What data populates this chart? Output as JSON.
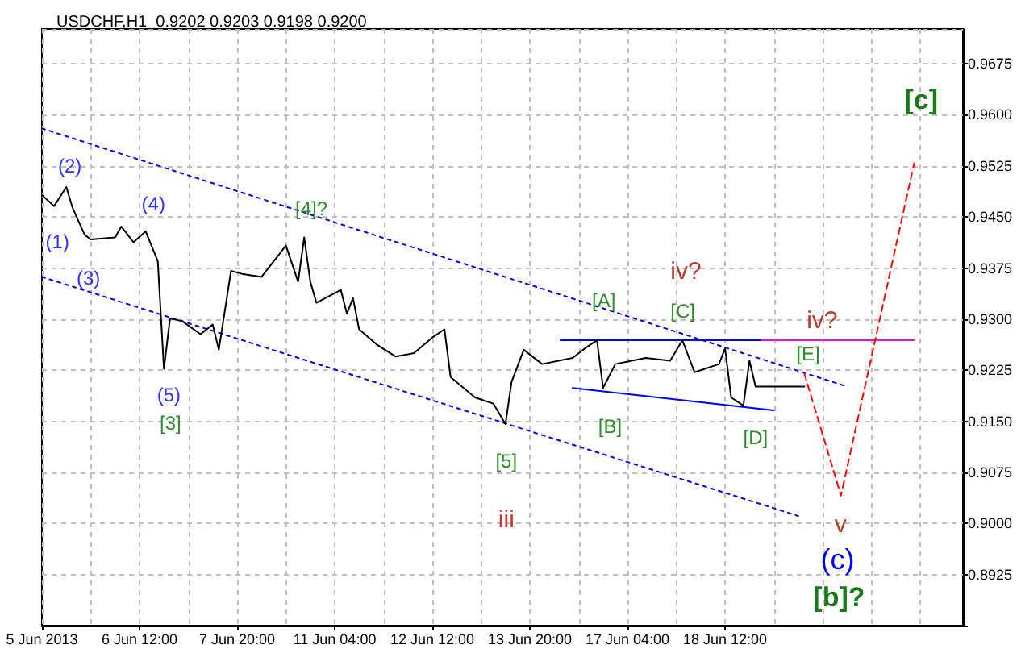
{
  "chart_data": {
    "type": "line",
    "title": "USDCHF,H1  0.9202 0.9203 0.9198 0.9200",
    "categories": [
      "5 Jun 2013",
      null,
      null,
      null,
      null,
      null,
      null,
      null,
      null,
      null,
      null,
      null,
      null,
      null,
      null,
      null,
      "6 Jun 12:00",
      null,
      null,
      null,
      null,
      null,
      null,
      null,
      null,
      null,
      null,
      null,
      null,
      null,
      null,
      null,
      "7 Jun 20:00",
      null,
      null,
      null,
      null,
      null,
      null,
      null,
      null,
      null,
      null,
      null,
      null,
      null,
      null,
      null,
      "11 Jun 04:00",
      null,
      null,
      null,
      null,
      null,
      null,
      null,
      null,
      null,
      null,
      null,
      null,
      null,
      null,
      null,
      "12 Jun 12:00",
      null,
      null,
      null,
      null,
      null,
      null,
      null,
      null,
      null,
      null,
      null,
      null,
      null,
      null,
      null,
      "13 Jun 20:00",
      null,
      null,
      null,
      null,
      null,
      null,
      null,
      null,
      null,
      null,
      null,
      null,
      null,
      null,
      null,
      "17 Jun 04:00",
      null,
      null,
      null,
      null,
      null,
      null,
      null,
      null,
      null,
      null,
      null,
      null,
      null,
      null,
      null,
      "18 Jun 12:00",
      null,
      null,
      null,
      null,
      null,
      null,
      null,
      null,
      null,
      null,
      null,
      null,
      null,
      null,
      null,
      null,
      null,
      null,
      null,
      null,
      null,
      null,
      null,
      null,
      null,
      null,
      null,
      null,
      null,
      null,
      null,
      null,
      null,
      null,
      null,
      null,
      null,
      null,
      null
    ],
    "ylim": [
      0.885,
      0.9726
    ],
    "yticks": [
      {
        "value": 0.885,
        "label": null
      },
      {
        "value": 0.8925,
        "label": "0.8925"
      },
      {
        "value": 0.9,
        "label": "0.9000"
      },
      {
        "value": 0.9075,
        "label": "0.9075"
      },
      {
        "value": 0.915,
        "label": "0.9150"
      },
      {
        "value": 0.9225,
        "label": "0.9225"
      },
      {
        "value": 0.93,
        "label": "0.9300"
      },
      {
        "value": 0.9375,
        "label": "0.9375"
      },
      {
        "value": 0.945,
        "label": "0.9450"
      },
      {
        "value": 0.9525,
        "label": "0.9525"
      },
      {
        "value": 0.96,
        "label": "0.9600"
      },
      {
        "value": 0.9675,
        "label": "0.9675"
      }
    ],
    "grid": true,
    "marker": "none",
    "series": [
      {
        "color": "#000000",
        "values": [
          0.9482,
          null,
          0.9466,
          null,
          0.9494,
          0.9464,
          null,
          0.9424,
          0.9417,
          null,
          null,
          null,
          0.942,
          0.9436,
          null,
          0.9413,
          null,
          0.9429,
          null,
          0.9385,
          0.9227,
          0.9301,
          null,
          0.9297,
          null,
          null,
          0.9278,
          null,
          0.9292,
          0.9255,
          null,
          0.9371,
          null,
          0.9366,
          null,
          null,
          0.9362,
          null,
          0.9385,
          null,
          0.9408,
          null,
          0.9355,
          0.942,
          0.9355,
          0.9324,
          null,
          null,
          null,
          0.9343,
          0.9308,
          0.9331,
          0.9285,
          null,
          null,
          0.9262,
          null,
          null,
          0.9245,
          null,
          null,
          0.925,
          null,
          null,
          0.9273,
          null,
          0.9285,
          0.9215,
          null,
          null,
          null,
          0.9185,
          null,
          null,
          0.9176,
          null,
          0.9146,
          0.9208,
          null,
          0.9255,
          null,
          null,
          0.9234,
          null,
          null,
          null,
          null,
          0.9243,
          null,
          0.9257,
          null,
          0.9269,
          0.9199,
          null,
          0.9234,
          null,
          null,
          null,
          null,
          0.9243,
          null,
          null,
          null,
          0.9239,
          null,
          0.9269,
          null,
          0.9222,
          null,
          null,
          null,
          0.9234,
          0.9257,
          0.9185,
          null,
          0.9173,
          0.9239,
          0.9201,
          null,
          null,
          null,
          0.9201,
          null,
          null,
          null,
          0.9201,
          null,
          null,
          null,
          null,
          null,
          null,
          null,
          null,
          null,
          null,
          null,
          null,
          null,
          null,
          null,
          null,
          null,
          null,
          null,
          null,
          null,
          null,
          null,
          null,
          null,
          null
        ]
      },
      {
        "color": "#0000ff",
        "line_style": "dotted",
        "values": [
          0.958,
          null,
          null,
          null,
          null,
          null,
          null,
          null,
          null,
          null,
          null,
          null,
          null,
          null,
          null,
          null,
          null,
          null,
          null,
          null,
          null,
          null,
          null,
          null,
          null,
          null,
          null,
          null,
          null,
          null,
          null,
          null,
          null,
          null,
          null,
          null,
          null,
          null,
          null,
          null,
          null,
          null,
          null,
          null,
          null,
          null,
          null,
          null,
          null,
          null,
          null,
          null,
          null,
          null,
          null,
          null,
          null,
          null,
          null,
          null,
          null,
          null,
          null,
          null,
          null,
          null,
          null,
          null,
          null,
          null,
          null,
          null,
          null,
          null,
          null,
          null,
          null,
          null,
          null,
          null,
          null,
          null,
          null,
          null,
          null,
          null,
          null,
          null,
          null,
          null,
          null,
          null,
          null,
          null,
          null,
          null,
          null,
          null,
          null,
          null,
          null,
          null,
          null,
          null,
          null,
          null,
          null,
          null,
          null,
          null,
          null,
          null,
          null,
          null,
          null,
          null,
          null,
          null,
          null,
          null,
          null,
          null,
          null,
          null,
          null,
          null,
          null,
          null,
          null,
          null,
          null,
          null,
          0.9201,
          null,
          null,
          null,
          null,
          null,
          null,
          null,
          null,
          null,
          null,
          null,
          null,
          null,
          null,
          null,
          null,
          null,
          null,
          null
        ]
      },
      {
        "color": "#0000ff",
        "line_style": "dotted",
        "values": [
          0.9362,
          null,
          null,
          null,
          null,
          null,
          null,
          null,
          null,
          null,
          null,
          null,
          null,
          null,
          null,
          null,
          null,
          null,
          null,
          null,
          null,
          null,
          null,
          null,
          null,
          null,
          null,
          null,
          null,
          null,
          null,
          null,
          null,
          null,
          null,
          null,
          null,
          null,
          null,
          null,
          null,
          null,
          null,
          null,
          null,
          null,
          null,
          null,
          null,
          null,
          null,
          null,
          null,
          null,
          null,
          null,
          null,
          null,
          null,
          null,
          null,
          null,
          null,
          null,
          null,
          null,
          null,
          null,
          null,
          null,
          null,
          null,
          null,
          null,
          null,
          null,
          null,
          null,
          null,
          null,
          null,
          null,
          null,
          null,
          null,
          null,
          null,
          null,
          null,
          null,
          null,
          null,
          null,
          null,
          null,
          null,
          null,
          null,
          null,
          null,
          null,
          null,
          null,
          null,
          null,
          null,
          null,
          null,
          null,
          null,
          null,
          null,
          null,
          null,
          null,
          null,
          null,
          null,
          null,
          null,
          null,
          null,
          null,
          null,
          0.9011,
          null,
          null,
          null,
          null,
          null,
          null,
          null,
          null,
          null,
          null,
          null,
          null,
          null,
          null,
          null,
          null,
          null,
          null,
          null,
          null,
          null,
          null,
          null,
          null,
          null,
          null,
          null
        ]
      },
      {
        "color": "#0000ff",
        "line_style": "solid",
        "values": [
          null,
          null,
          null,
          null,
          null,
          null,
          null,
          null,
          null,
          null,
          null,
          null,
          null,
          null,
          null,
          null,
          null,
          null,
          null,
          null,
          null,
          null,
          null,
          null,
          null,
          null,
          null,
          null,
          null,
          null,
          null,
          null,
          null,
          null,
          null,
          null,
          null,
          null,
          null,
          null,
          null,
          null,
          null,
          null,
          null,
          null,
          null,
          null,
          null,
          null,
          null,
          null,
          null,
          null,
          null,
          null,
          null,
          null,
          null,
          null,
          null,
          null,
          null,
          null,
          null,
          null,
          null,
          null,
          null,
          null,
          null,
          null,
          null,
          null,
          null,
          null,
          null,
          null,
          null,
          null,
          null,
          null,
          null,
          null,
          null,
          0.9269,
          null,
          null,
          null,
          null,
          null,
          null,
          null,
          null,
          null,
          null,
          null,
          null,
          null,
          null,
          null,
          null,
          null,
          null,
          null,
          null,
          null,
          null,
          null,
          null,
          null,
          null,
          null,
          null,
          null,
          null,
          null,
          null,
          0.9269,
          null,
          null,
          null,
          null,
          null,
          null,
          null,
          null,
          null,
          null,
          null,
          null,
          null,
          null,
          null,
          null,
          null,
          null,
          null,
          null,
          null,
          null,
          null,
          null,
          null,
          null,
          null,
          null,
          null,
          null,
          null,
          null,
          null
        ]
      },
      {
        "color": "#0000ff",
        "line_style": "solid",
        "values": [
          null,
          null,
          null,
          null,
          null,
          null,
          null,
          null,
          null,
          null,
          null,
          null,
          null,
          null,
          null,
          null,
          null,
          null,
          null,
          null,
          null,
          null,
          null,
          null,
          null,
          null,
          null,
          null,
          null,
          null,
          null,
          null,
          null,
          null,
          null,
          null,
          null,
          null,
          null,
          null,
          null,
          null,
          null,
          null,
          null,
          null,
          null,
          null,
          null,
          null,
          null,
          null,
          null,
          null,
          null,
          null,
          null,
          null,
          null,
          null,
          null,
          null,
          null,
          null,
          null,
          null,
          null,
          null,
          null,
          null,
          null,
          null,
          null,
          null,
          null,
          null,
          null,
          null,
          null,
          null,
          null,
          null,
          null,
          null,
          null,
          null,
          null,
          0.9199,
          null,
          null,
          null,
          null,
          null,
          null,
          null,
          null,
          null,
          null,
          null,
          null,
          null,
          null,
          null,
          null,
          null,
          null,
          null,
          null,
          null,
          null,
          null,
          null,
          null,
          null,
          null,
          null,
          null,
          null,
          null,
          null,
          0.9166,
          null,
          null,
          null,
          null,
          null,
          null,
          null,
          null,
          null,
          null,
          null,
          null,
          null,
          null,
          null,
          null,
          null,
          null,
          null,
          null,
          null,
          null,
          null,
          null,
          null,
          null,
          null,
          null,
          null,
          null,
          null
        ]
      },
      {
        "color": "#ff00ff",
        "line_style": "solid",
        "values": [
          null,
          null,
          null,
          null,
          null,
          null,
          null,
          null,
          null,
          null,
          null,
          null,
          null,
          null,
          null,
          null,
          null,
          null,
          null,
          null,
          null,
          null,
          null,
          null,
          null,
          null,
          null,
          null,
          null,
          null,
          null,
          null,
          null,
          null,
          null,
          null,
          null,
          null,
          null,
          null,
          null,
          null,
          null,
          null,
          null,
          null,
          null,
          null,
          null,
          null,
          null,
          null,
          null,
          null,
          null,
          null,
          null,
          null,
          null,
          null,
          null,
          null,
          null,
          null,
          null,
          null,
          null,
          null,
          null,
          null,
          null,
          null,
          null,
          null,
          null,
          null,
          null,
          null,
          null,
          null,
          null,
          null,
          null,
          null,
          null,
          null,
          null,
          null,
          null,
          null,
          null,
          null,
          null,
          null,
          null,
          null,
          null,
          null,
          null,
          null,
          null,
          null,
          null,
          null,
          null,
          null,
          null,
          null,
          null,
          null,
          null,
          null,
          null,
          null,
          null,
          null,
          null,
          null,
          0.9269,
          null,
          null,
          null,
          null,
          null,
          null,
          null,
          null,
          null,
          null,
          null,
          null,
          null,
          null,
          null,
          null,
          null,
          null,
          null,
          null,
          null,
          null,
          null,
          null,
          0.9269,
          null,
          null,
          null,
          null,
          null,
          null,
          null,
          null
        ]
      },
      {
        "color": "#ff0000",
        "line_style": "dashed",
        "values": [
          null,
          null,
          null,
          null,
          null,
          null,
          null,
          null,
          null,
          null,
          null,
          null,
          null,
          null,
          null,
          null,
          null,
          null,
          null,
          null,
          null,
          null,
          null,
          null,
          null,
          null,
          null,
          null,
          null,
          null,
          null,
          null,
          null,
          null,
          null,
          null,
          null,
          null,
          null,
          null,
          null,
          null,
          null,
          null,
          null,
          null,
          null,
          null,
          null,
          null,
          null,
          null,
          null,
          null,
          null,
          null,
          null,
          null,
          null,
          null,
          null,
          null,
          null,
          null,
          null,
          null,
          null,
          null,
          null,
          null,
          null,
          null,
          null,
          null,
          null,
          null,
          null,
          null,
          null,
          null,
          null,
          null,
          null,
          null,
          null,
          null,
          null,
          null,
          null,
          null,
          null,
          null,
          null,
          null,
          null,
          null,
          null,
          null,
          null,
          null,
          null,
          null,
          null,
          null,
          null,
          null,
          null,
          null,
          null,
          null,
          null,
          null,
          null,
          null,
          null,
          null,
          null,
          null,
          null,
          null,
          null,
          null,
          null,
          null,
          null,
          0.922,
          null,
          null,
          null,
          null,
          null,
          0.9041,
          null,
          null,
          null,
          null,
          null,
          null,
          null,
          null,
          null,
          null,
          null,
          0.9529,
          null,
          null,
          null,
          null,
          null,
          null,
          null,
          null
        ]
      }
    ],
    "annotations": [
      "(1)",
      "(2)",
      "(3)",
      "(4)",
      "(5)",
      "[3]",
      "[4]?",
      "[5]",
      "iii",
      "[A]",
      "[B]",
      "iv?",
      "[C]",
      "[D]",
      "iv?",
      "[E]",
      "v",
      "(c)",
      "[b]?",
      "[c]"
    ]
  }
}
